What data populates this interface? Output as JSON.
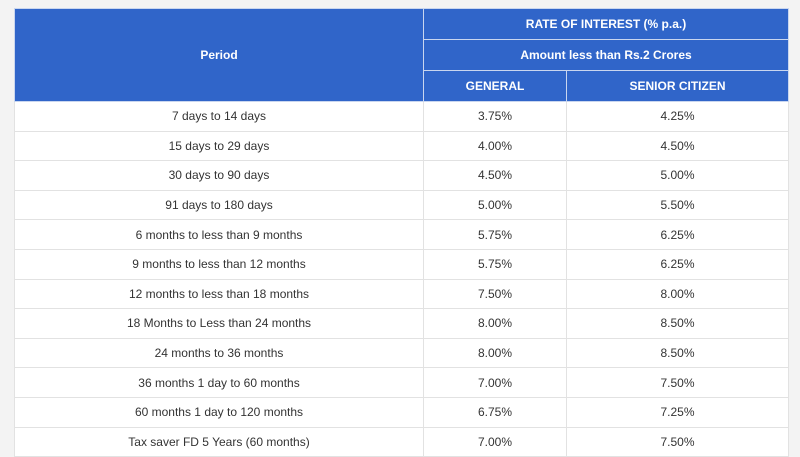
{
  "table": {
    "header": {
      "period": "Period",
      "rate": "RATE OF INTEREST (% p.a.)",
      "amount": "Amount less than Rs.2 Crores",
      "general": "GENERAL",
      "senior": "SENIOR CITIZEN"
    },
    "rows": [
      [
        "7 days to 14 days",
        "3.75%",
        "4.25%"
      ],
      [
        "15 days to 29 days",
        "4.00%",
        "4.50%"
      ],
      [
        "30 days to 90 days",
        "4.50%",
        "5.00%"
      ],
      [
        "91 days to 180 days",
        "5.00%",
        "5.50%"
      ],
      [
        "6 months to less than 9 months",
        "5.75%",
        "6.25%"
      ],
      [
        "9 months to less than 12 months",
        "5.75%",
        "6.25%"
      ],
      [
        "12 months to less than 18 months",
        "7.50%",
        "8.00%"
      ],
      [
        "18 Months to Less than 24 months",
        "8.00%",
        "8.50%"
      ],
      [
        "24 months to 36 months",
        "8.00%",
        "8.50%"
      ],
      [
        "36 months 1 day to 60 months",
        "7.00%",
        "7.50%"
      ],
      [
        "60 months 1 day to 120 months",
        "6.75%",
        "7.25%"
      ],
      [
        "Tax saver FD 5 Years (60 months)",
        "7.00%",
        "7.50%"
      ]
    ]
  }
}
